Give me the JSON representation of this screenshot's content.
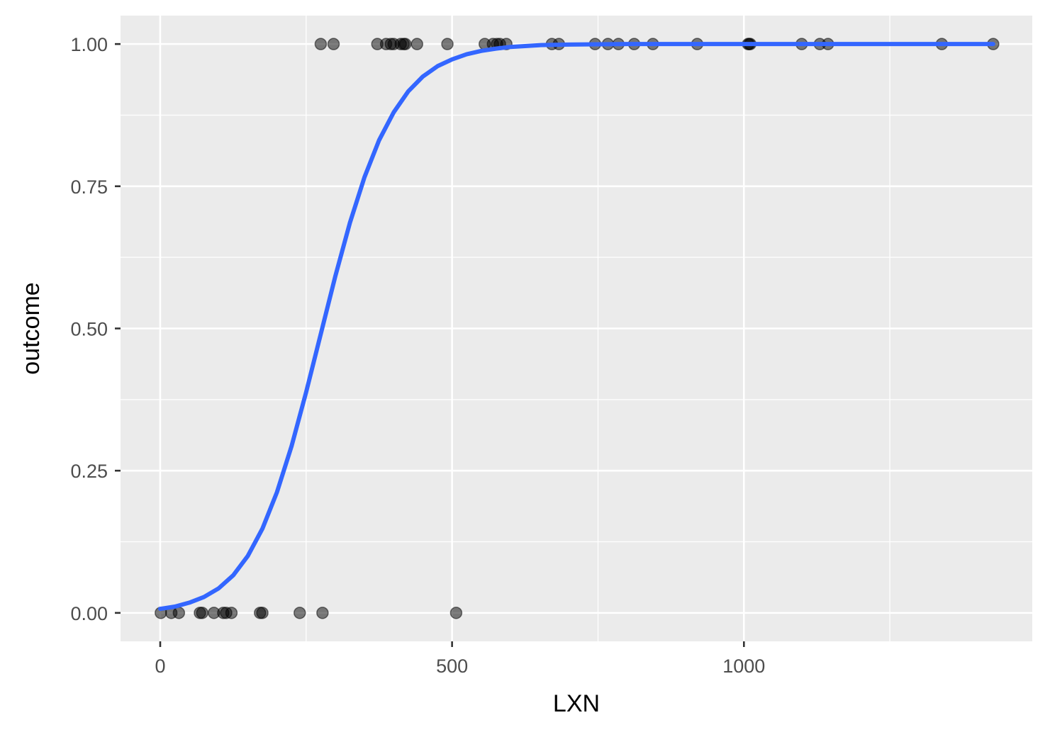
{
  "chart_data": {
    "type": "scatter",
    "xlabel": "LXN",
    "ylabel": "outcome",
    "xlim": [
      -68,
      1494
    ],
    "ylim": [
      -0.05,
      1.05
    ],
    "x_ticks": [
      0,
      500,
      1000
    ],
    "x_tick_labels": [
      "0",
      "500",
      "1000"
    ],
    "y_ticks": [
      0,
      0.25,
      0.5,
      0.75,
      1
    ],
    "y_tick_labels": [
      "0.00",
      "0.25",
      "0.50",
      "0.75",
      "1.00"
    ],
    "grid": true,
    "legend": "none",
    "colors": {
      "panel_background": "#ebebeb",
      "grid": "#ffffff",
      "points": "#000000",
      "curve": "#3366ff"
    },
    "points_opacity": 0.5,
    "points": [
      {
        "x": 1,
        "y": 0
      },
      {
        "x": 19,
        "y": 0
      },
      {
        "x": 32,
        "y": 0
      },
      {
        "x": 68,
        "y": 0
      },
      {
        "x": 72,
        "y": 0
      },
      {
        "x": 92,
        "y": 0
      },
      {
        "x": 108,
        "y": 0
      },
      {
        "x": 113,
        "y": 0
      },
      {
        "x": 122,
        "y": 0
      },
      {
        "x": 171,
        "y": 0
      },
      {
        "x": 175,
        "y": 0
      },
      {
        "x": 239,
        "y": 0
      },
      {
        "x": 278,
        "y": 0
      },
      {
        "x": 507,
        "y": 0
      },
      {
        "x": 275,
        "y": 1
      },
      {
        "x": 297,
        "y": 1
      },
      {
        "x": 372,
        "y": 1
      },
      {
        "x": 387,
        "y": 1
      },
      {
        "x": 395,
        "y": 1
      },
      {
        "x": 400,
        "y": 1
      },
      {
        "x": 412,
        "y": 1
      },
      {
        "x": 417,
        "y": 1
      },
      {
        "x": 420,
        "y": 1
      },
      {
        "x": 440,
        "y": 1
      },
      {
        "x": 492,
        "y": 1
      },
      {
        "x": 556,
        "y": 1
      },
      {
        "x": 570,
        "y": 1
      },
      {
        "x": 577,
        "y": 1
      },
      {
        "x": 582,
        "y": 1
      },
      {
        "x": 593,
        "y": 1
      },
      {
        "x": 671,
        "y": 1
      },
      {
        "x": 683,
        "y": 1
      },
      {
        "x": 745,
        "y": 1
      },
      {
        "x": 767,
        "y": 1
      },
      {
        "x": 785,
        "y": 1
      },
      {
        "x": 812,
        "y": 1
      },
      {
        "x": 844,
        "y": 1
      },
      {
        "x": 920,
        "y": 1
      },
      {
        "x": 1007,
        "y": 1
      },
      {
        "x": 1009,
        "y": 1
      },
      {
        "x": 1011,
        "y": 1
      },
      {
        "x": 1099,
        "y": 1
      },
      {
        "x": 1130,
        "y": 1
      },
      {
        "x": 1144,
        "y": 1
      },
      {
        "x": 1339,
        "y": 1
      },
      {
        "x": 1427,
        "y": 1
      }
    ],
    "series": [
      {
        "kind": "logistic-fit-curve",
        "x": [
          0,
          25,
          50,
          75,
          100,
          125,
          150,
          175,
          200,
          225,
          250,
          275,
          300,
          325,
          350,
          375,
          400,
          425,
          450,
          475,
          500,
          525,
          550,
          575,
          600,
          650,
          700,
          800,
          900,
          1000,
          1100,
          1200,
          1300,
          1427
        ],
        "y": [
          0.007,
          0.011,
          0.018,
          0.028,
          0.043,
          0.066,
          0.1,
          0.148,
          0.212,
          0.293,
          0.388,
          0.49,
          0.592,
          0.686,
          0.766,
          0.831,
          0.88,
          0.917,
          0.943,
          0.961,
          0.973,
          0.982,
          0.988,
          0.992,
          0.995,
          0.998,
          0.999,
          1.0,
          1.0,
          1.0,
          1.0,
          1.0,
          1.0,
          1.0
        ]
      }
    ]
  }
}
